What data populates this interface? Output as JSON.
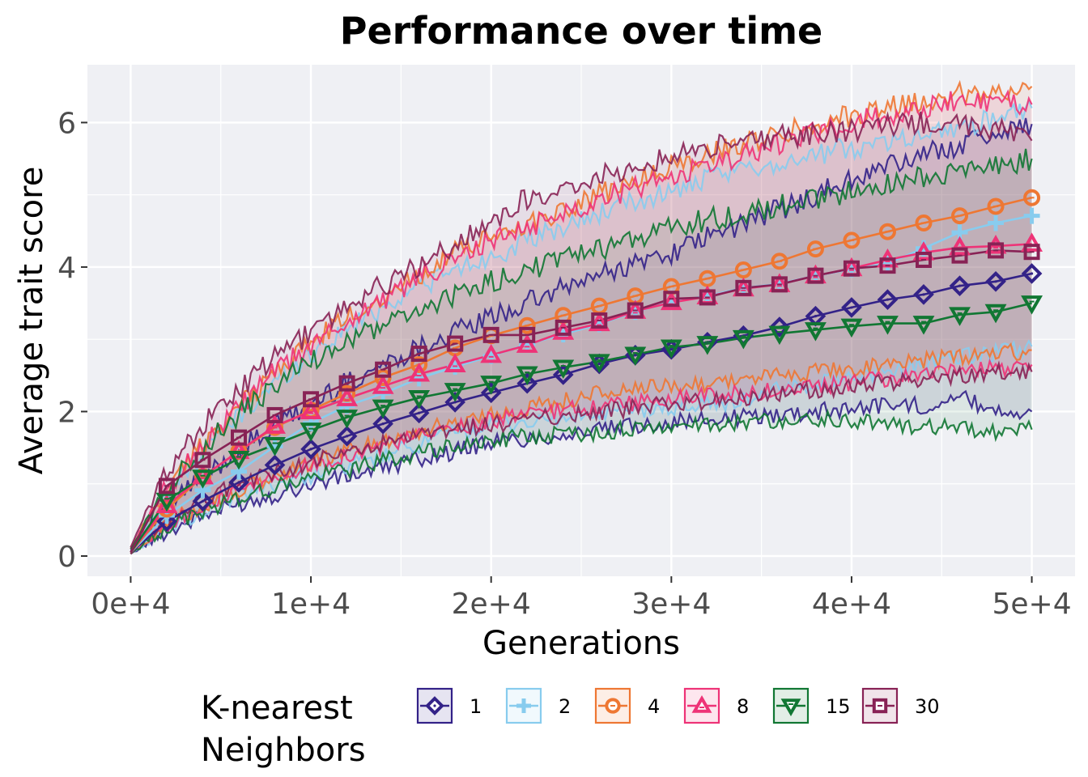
{
  "chart_data": {
    "type": "line",
    "title": "Performance over time",
    "xlabel": "Generations",
    "ylabel": "Average trait score",
    "xlim": [
      -2400,
      52400
    ],
    "ylim": [
      -0.28,
      6.8
    ],
    "x_ticks": [
      0,
      10000,
      20000,
      30000,
      40000,
      50000
    ],
    "x_tick_labels": [
      "0e+4",
      "1e+4",
      "2e+4",
      "3e+4",
      "4e+4",
      "5e+4"
    ],
    "y_ticks": [
      0,
      2,
      4,
      6
    ],
    "y_tick_labels": [
      "0",
      "2",
      "4",
      "6"
    ],
    "grid": true,
    "legend_placement": "bottom",
    "legend_title_lines": [
      "K-nearest",
      "Neighbors"
    ],
    "x": [
      0,
      2000,
      4000,
      6000,
      8000,
      10000,
      12000,
      14000,
      16000,
      18000,
      20000,
      22000,
      24000,
      26000,
      28000,
      30000,
      32000,
      34000,
      36000,
      38000,
      40000,
      42000,
      44000,
      46000,
      48000,
      50000
    ],
    "series": [
      {
        "name": "1",
        "color": "#332288",
        "marker": "diamond",
        "values": [
          0.05,
          0.48,
          0.76,
          1.02,
          1.26,
          1.48,
          1.66,
          1.83,
          1.98,
          2.13,
          2.26,
          2.39,
          2.51,
          2.66,
          2.78,
          2.86,
          2.96,
          3.05,
          3.17,
          3.32,
          3.44,
          3.55,
          3.62,
          3.74,
          3.8,
          3.91
        ],
        "lower": [
          0.03,
          0.35,
          0.55,
          0.72,
          0.85,
          1.0,
          1.1,
          1.22,
          1.35,
          1.45,
          1.58,
          1.62,
          1.68,
          1.74,
          1.8,
          1.86,
          1.88,
          1.92,
          1.96,
          2.0,
          2.05,
          2.1,
          2.08,
          2.2,
          2.02,
          2.0
        ],
        "upper": [
          0.08,
          0.7,
          1.1,
          1.45,
          1.8,
          2.1,
          2.4,
          2.65,
          2.9,
          3.1,
          3.3,
          3.5,
          3.7,
          3.9,
          4.05,
          4.2,
          4.4,
          4.6,
          4.8,
          5.0,
          5.2,
          5.4,
          5.55,
          5.7,
          5.85,
          5.98
        ]
      },
      {
        "name": "2",
        "color": "#88CCEE",
        "marker": "plus",
        "values": [
          0.05,
          0.56,
          0.91,
          1.17,
          1.52,
          1.84,
          2.08,
          2.25,
          2.46,
          2.62,
          2.77,
          2.93,
          3.07,
          3.21,
          3.38,
          3.52,
          3.6,
          3.71,
          3.77,
          3.88,
          3.97,
          4.05,
          4.26,
          4.48,
          4.61,
          4.71
        ],
        "lower": [
          0.03,
          0.4,
          0.62,
          0.82,
          1.0,
          1.12,
          1.25,
          1.38,
          1.55,
          1.7,
          1.8,
          1.85,
          1.9,
          1.95,
          2.0,
          2.05,
          2.1,
          2.15,
          2.3,
          2.4,
          2.5,
          2.55,
          2.65,
          2.75,
          2.8,
          2.9
        ],
        "upper": [
          0.1,
          0.85,
          1.45,
          1.95,
          2.4,
          2.8,
          3.15,
          3.45,
          3.75,
          3.95,
          4.15,
          4.35,
          4.55,
          4.75,
          4.9,
          5.05,
          5.2,
          5.35,
          5.45,
          5.55,
          5.65,
          5.75,
          5.85,
          5.95,
          6.05,
          6.2
        ]
      },
      {
        "name": "4",
        "color": "#EE7733",
        "marker": "circle",
        "values": [
          0.05,
          0.65,
          1.1,
          1.45,
          1.78,
          2.02,
          2.25,
          2.47,
          2.65,
          2.88,
          3.05,
          3.19,
          3.33,
          3.46,
          3.6,
          3.73,
          3.84,
          3.96,
          4.08,
          4.25,
          4.37,
          4.49,
          4.61,
          4.71,
          4.84,
          4.96
        ],
        "lower": [
          0.03,
          0.45,
          0.7,
          0.9,
          1.1,
          1.3,
          1.45,
          1.6,
          1.72,
          1.85,
          1.95,
          2.05,
          2.15,
          2.25,
          2.3,
          2.35,
          2.4,
          2.45,
          2.5,
          2.55,
          2.6,
          2.65,
          2.7,
          2.75,
          2.8,
          2.85
        ],
        "upper": [
          0.1,
          0.95,
          1.55,
          2.05,
          2.55,
          2.95,
          3.3,
          3.6,
          3.9,
          4.2,
          4.4,
          4.6,
          4.8,
          5.0,
          5.2,
          5.4,
          5.55,
          5.7,
          5.85,
          6.0,
          6.1,
          6.2,
          6.3,
          6.4,
          6.45,
          6.5
        ]
      },
      {
        "name": "8",
        "color": "#EE3377",
        "marker": "triangle",
        "values": [
          0.05,
          0.7,
          1.1,
          1.45,
          1.8,
          2.0,
          2.18,
          2.35,
          2.52,
          2.65,
          2.78,
          2.92,
          3.1,
          3.22,
          3.39,
          3.51,
          3.59,
          3.7,
          3.76,
          3.88,
          3.98,
          4.1,
          4.2,
          4.27,
          4.29,
          4.32
        ],
        "lower": [
          0.03,
          0.45,
          0.7,
          0.9,
          1.08,
          1.25,
          1.4,
          1.52,
          1.65,
          1.78,
          1.88,
          1.95,
          2.02,
          2.08,
          2.12,
          2.18,
          2.22,
          2.25,
          2.3,
          2.35,
          2.4,
          2.45,
          2.5,
          2.55,
          2.6,
          2.65
        ],
        "upper": [
          0.1,
          0.95,
          1.55,
          2.05,
          2.55,
          2.9,
          3.25,
          3.55,
          3.85,
          4.1,
          4.35,
          4.55,
          4.75,
          4.95,
          5.1,
          5.25,
          5.4,
          5.55,
          5.7,
          5.85,
          6.0,
          6.1,
          6.2,
          6.3,
          6.3,
          6.25
        ]
      },
      {
        "name": "15",
        "color": "#117733",
        "marker": "triangle-down",
        "values": [
          0.05,
          0.77,
          1.09,
          1.35,
          1.54,
          1.74,
          1.92,
          2.06,
          2.19,
          2.29,
          2.39,
          2.52,
          2.61,
          2.69,
          2.79,
          2.89,
          2.94,
          3.02,
          3.08,
          3.13,
          3.18,
          3.22,
          3.22,
          3.34,
          3.38,
          3.5
        ],
        "lower": [
          0.03,
          0.4,
          0.62,
          0.8,
          0.95,
          1.08,
          1.2,
          1.32,
          1.42,
          1.52,
          1.6,
          1.65,
          1.68,
          1.72,
          1.76,
          1.8,
          1.82,
          1.85,
          1.88,
          1.9,
          1.88,
          1.82,
          1.8,
          1.75,
          1.7,
          1.75
        ],
        "upper": [
          0.1,
          0.95,
          1.5,
          1.95,
          2.35,
          2.7,
          2.95,
          3.2,
          3.4,
          3.6,
          3.8,
          3.95,
          4.1,
          4.25,
          4.4,
          4.55,
          4.65,
          4.75,
          4.85,
          4.95,
          5.05,
          5.15,
          5.25,
          5.3,
          5.4,
          5.5
        ]
      },
      {
        "name": "30",
        "color": "#882255",
        "marker": "square",
        "values": [
          0.05,
          0.97,
          1.33,
          1.64,
          1.95,
          2.17,
          2.39,
          2.58,
          2.8,
          2.94,
          3.06,
          3.06,
          3.16,
          3.26,
          3.4,
          3.56,
          3.58,
          3.71,
          3.76,
          3.88,
          3.98,
          4.02,
          4.1,
          4.16,
          4.23,
          4.21
        ],
        "lower": [
          0.03,
          0.5,
          0.8,
          1.0,
          1.15,
          1.3,
          1.42,
          1.55,
          1.65,
          1.75,
          1.82,
          1.88,
          1.95,
          2.0,
          2.05,
          2.1,
          2.15,
          2.2,
          2.25,
          2.3,
          2.35,
          2.4,
          2.45,
          2.5,
          2.55,
          2.55
        ],
        "upper": [
          0.12,
          1.2,
          1.8,
          2.3,
          2.75,
          3.1,
          3.45,
          3.75,
          4.0,
          4.3,
          4.65,
          4.95,
          5.1,
          5.25,
          5.4,
          5.55,
          5.65,
          5.75,
          5.8,
          5.85,
          5.9,
          5.95,
          6.0,
          6.0,
          5.9,
          5.75
        ]
      }
    ]
  }
}
